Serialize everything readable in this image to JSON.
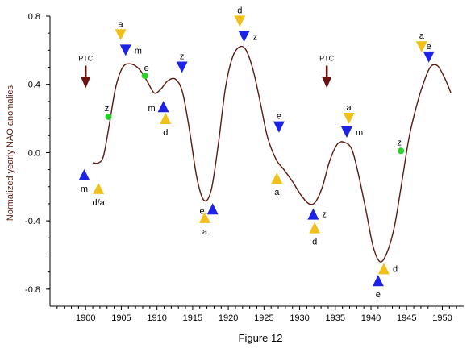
{
  "chart_data": {
    "type": "line",
    "caption": "Figure 12",
    "ylabel": "Normalized yearly NAO anomalies",
    "xlabel": "",
    "xlim": [
      1895,
      1953
    ],
    "ylim": [
      -0.9,
      0.8
    ],
    "xticks": [
      1900,
      1905,
      1910,
      1915,
      1920,
      1925,
      1930,
      1935,
      1940,
      1945,
      1950
    ],
    "yticks": [
      {
        "value": 0.8,
        "label": "0.8"
      },
      {
        "value": 0.4,
        "label": "0.4"
      },
      {
        "value": 0.0,
        "label": "0.0"
      },
      {
        "value": -0.4,
        "label": "-0.4"
      },
      {
        "value": -0.8,
        "label": "-0.8"
      }
    ],
    "grid": false,
    "colors": {
      "curve": "#5a1a0f",
      "yellow_marker": "#f2c01b",
      "blue_marker": "#1c23e6",
      "green_point": "#28d22a",
      "ptc_arrow": "#6b1010"
    },
    "series": [
      {
        "x": [
          1901.0,
          1901.8,
          1902.5,
          1903.3,
          1904.2,
          1905.2,
          1906.3,
          1907.5,
          1908.6,
          1909.6,
          1910.5,
          1911.5,
          1912.6,
          1913.6,
          1914.6,
          1915.6,
          1916.6,
          1917.6,
          1918.6,
          1919.6,
          1920.6,
          1921.6,
          1922.5,
          1923.5,
          1924.5,
          1925.5,
          1926.7,
          1927.8,
          1929.0,
          1930.2,
          1931.3,
          1932.2,
          1933.2,
          1934.2,
          1935.3,
          1936.3,
          1937.3,
          1938.2,
          1939.3,
          1940.3,
          1941.3,
          1942.3,
          1943.3,
          1944.3,
          1945.3,
          1946.3,
          1947.3,
          1948.3,
          1949.3,
          1950.3,
          1951.2
        ],
        "y": [
          -0.06,
          -0.06,
          -0.02,
          0.16,
          0.38,
          0.5,
          0.52,
          0.49,
          0.42,
          0.35,
          0.37,
          0.42,
          0.43,
          0.35,
          0.12,
          -0.15,
          -0.28,
          -0.22,
          0.05,
          0.38,
          0.56,
          0.62,
          0.6,
          0.48,
          0.29,
          0.09,
          -0.04,
          -0.1,
          -0.17,
          -0.25,
          -0.3,
          -0.29,
          -0.2,
          -0.05,
          0.05,
          0.06,
          0.02,
          -0.12,
          -0.34,
          -0.55,
          -0.64,
          -0.58,
          -0.43,
          -0.18,
          0.08,
          0.26,
          0.4,
          0.5,
          0.51,
          0.44,
          0.35
        ]
      }
    ],
    "points": [
      {
        "x": 1903.2,
        "y": 0.21,
        "label": "z"
      },
      {
        "x": 1908.3,
        "y": 0.45,
        "label": "e"
      },
      {
        "x": 1944.2,
        "y": 0.01,
        "label": "z"
      }
    ],
    "markers": [
      {
        "x": 1899.8,
        "y": -0.13,
        "dir": "up",
        "color": "blue",
        "label": "m",
        "label_pos": "below"
      },
      {
        "x": 1901.8,
        "y": -0.21,
        "dir": "up",
        "color": "yellow",
        "label": "d/a",
        "label_pos": "below"
      },
      {
        "x": 1904.9,
        "y": 0.69,
        "dir": "down",
        "color": "yellow",
        "label": "a",
        "label_pos": "above"
      },
      {
        "x": 1905.6,
        "y": 0.6,
        "dir": "down",
        "color": "blue",
        "label": "m",
        "label_pos": "right"
      },
      {
        "x": 1910.9,
        "y": 0.27,
        "dir": "up",
        "color": "blue",
        "label": "m",
        "label_pos": "left"
      },
      {
        "x": 1911.2,
        "y": 0.2,
        "dir": "up",
        "color": "yellow",
        "label": "d",
        "label_pos": "below"
      },
      {
        "x": 1913.5,
        "y": 0.5,
        "dir": "down",
        "color": "blue",
        "label": "z",
        "label_pos": "above"
      },
      {
        "x": 1916.7,
        "y": -0.38,
        "dir": "up",
        "color": "yellow",
        "label": "a",
        "label_pos": "below"
      },
      {
        "x": 1917.8,
        "y": -0.33,
        "dir": "up",
        "color": "blue",
        "label": "e",
        "label_pos": "left"
      },
      {
        "x": 1921.6,
        "y": 0.77,
        "dir": "down",
        "color": "yellow",
        "label": "d",
        "label_pos": "above"
      },
      {
        "x": 1922.2,
        "y": 0.68,
        "dir": "down",
        "color": "blue",
        "label": "z",
        "label_pos": "right"
      },
      {
        "x": 1927.1,
        "y": 0.15,
        "dir": "down",
        "color": "blue",
        "label": "e",
        "label_pos": "above"
      },
      {
        "x": 1926.8,
        "y": -0.15,
        "dir": "up",
        "color": "yellow",
        "label": "a",
        "label_pos": "below"
      },
      {
        "x": 1931.9,
        "y": -0.36,
        "dir": "up",
        "color": "blue",
        "label": "z",
        "label_pos": "right"
      },
      {
        "x": 1932.1,
        "y": -0.44,
        "dir": "up",
        "color": "yellow",
        "label": "d",
        "label_pos": "below"
      },
      {
        "x": 1936.9,
        "y": 0.2,
        "dir": "down",
        "color": "yellow",
        "label": "a",
        "label_pos": "above"
      },
      {
        "x": 1936.6,
        "y": 0.12,
        "dir": "down",
        "color": "blue",
        "label": "m",
        "label_pos": "right"
      },
      {
        "x": 1941.0,
        "y": -0.75,
        "dir": "up",
        "color": "blue",
        "label": "e",
        "label_pos": "below"
      },
      {
        "x": 1941.8,
        "y": -0.68,
        "dir": "up",
        "color": "yellow",
        "label": "d",
        "label_pos": "right"
      },
      {
        "x": 1947.1,
        "y": 0.62,
        "dir": "down",
        "color": "yellow",
        "label": "a",
        "label_pos": "above"
      },
      {
        "x": 1948.1,
        "y": 0.56,
        "dir": "down",
        "color": "blue",
        "label": "e",
        "label_pos": "above"
      }
    ],
    "annotations": [
      {
        "x": 1900.0,
        "y": 0.5,
        "text": "PTC"
      },
      {
        "x": 1933.8,
        "y": 0.5,
        "text": "PTC"
      }
    ]
  }
}
